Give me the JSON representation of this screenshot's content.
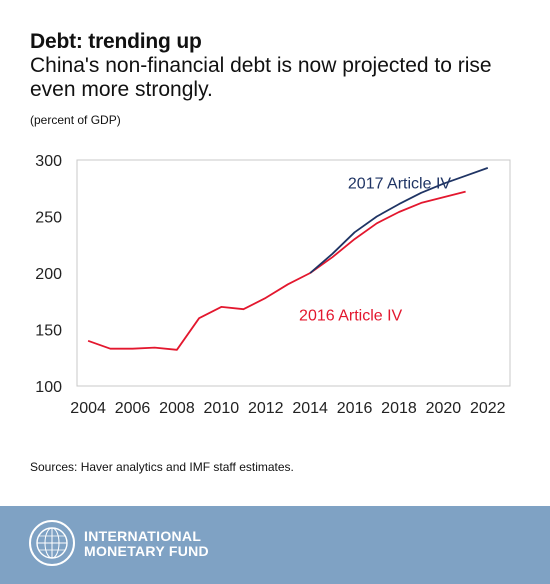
{
  "header": {
    "title": "Debt: trending up",
    "subtitle": "China's non-financial debt is now projected to rise even more strongly."
  },
  "units_note": "(percent of GDP)",
  "source_note": "Sources: Haver analytics and IMF staff estimates.",
  "footer": {
    "org_line1": "INTERNATIONAL",
    "org_line2": "MONETARY FUND",
    "background_color": "#7fa2c4",
    "seal_icon": "imf-seal-icon"
  },
  "chart_data": {
    "type": "line",
    "title": "",
    "xlabel": "",
    "ylabel": "",
    "xlim": [
      2003.5,
      2023
    ],
    "ylim": [
      100,
      300
    ],
    "x_ticks": [
      2004,
      2006,
      2008,
      2010,
      2012,
      2014,
      2016,
      2018,
      2020,
      2022
    ],
    "x_tick_labels": [
      "2004",
      "2006",
      "2008",
      "2010",
      "2012",
      "2014",
      "2016",
      "2018",
      "2020",
      "2022"
    ],
    "y_ticks": [
      100,
      150,
      200,
      250,
      300
    ],
    "y_tick_labels": [
      "100",
      "150",
      "200",
      "250",
      "300"
    ],
    "grid": false,
    "legend": "inline labels",
    "series": [
      {
        "name": "2017 Article IV",
        "color": "#1f3464",
        "x": [
          2014,
          2015,
          2016,
          2017,
          2018,
          2019,
          2020,
          2021,
          2022
        ],
        "y": [
          200,
          217,
          236,
          250,
          261,
          271,
          279,
          286,
          293
        ],
        "label_x": 2015.7,
        "label_y": 275
      },
      {
        "name": "2016 Article IV",
        "color": "#e3172e",
        "x": [
          2004,
          2005,
          2006,
          2007,
          2008,
          2009,
          2010,
          2011,
          2012,
          2013,
          2014,
          2015,
          2016,
          2017,
          2018,
          2019,
          2020,
          2021
        ],
        "y": [
          140,
          133,
          133,
          134,
          132,
          160,
          170,
          168,
          178,
          190,
          200,
          214,
          230,
          244,
          254,
          262,
          267,
          272
        ],
        "label_x": 2013.5,
        "label_y": 158
      }
    ]
  }
}
